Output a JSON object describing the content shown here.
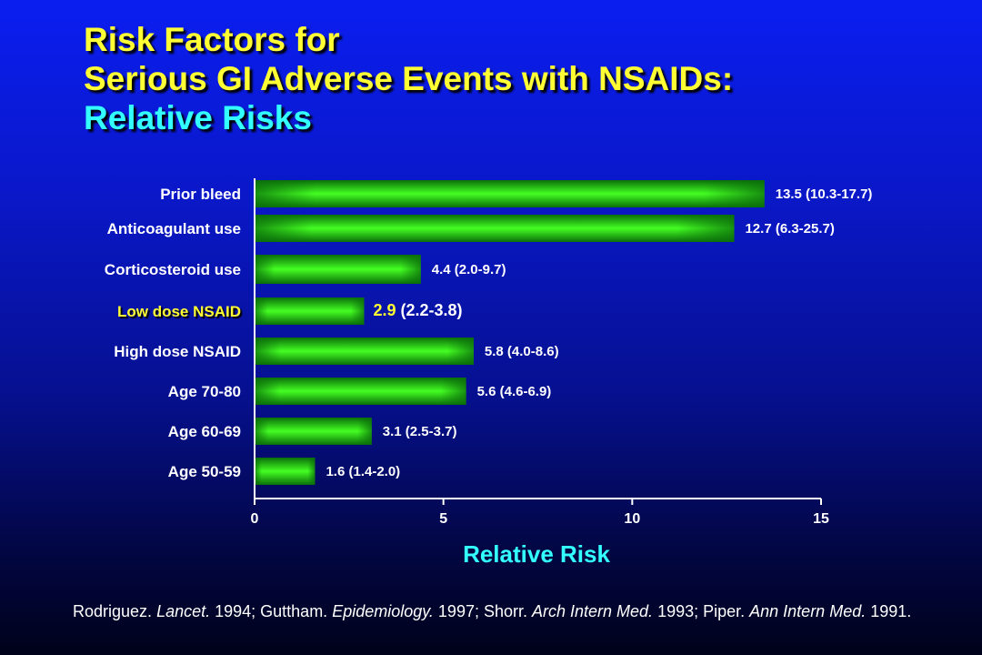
{
  "title": {
    "line1": "Risk Factors for",
    "line2": "Serious GI Adverse Events with NSAIDs:",
    "line3": "Relative Risks"
  },
  "colors": {
    "bar_edge": "#0a6e0a",
    "bar_center": "#44ff22",
    "label": "#ffffff",
    "highlight": "#ffff33",
    "axis_title": "#33ffff"
  },
  "chart_data": {
    "type": "bar",
    "orientation": "horizontal",
    "categories": [
      "Prior bleed",
      "Anticoagulant use",
      "Corticosteroid use",
      "Low dose NSAID",
      "High dose NSAID",
      "Age 70-80",
      "Age 60-69",
      "Age 50-59"
    ],
    "values": [
      13.5,
      12.7,
      4.4,
      2.9,
      5.8,
      5.6,
      3.1,
      1.6
    ],
    "data_labels": [
      {
        "value": "13.5",
        "ci": "(10.3-17.7)"
      },
      {
        "value": "12.7",
        "ci": "(6.3-25.7)"
      },
      {
        "value": "4.4",
        "ci": "(2.0-9.7)"
      },
      {
        "value": "2.9",
        "ci": "(2.2-3.8)"
      },
      {
        "value": "5.8",
        "ci": "(4.0-8.6)"
      },
      {
        "value": "5.6",
        "ci": "(4.6-6.9)"
      },
      {
        "value": "3.1",
        "ci": "(2.5-3.7)"
      },
      {
        "value": "1.6",
        "ci": "(1.4-2.0)"
      }
    ],
    "highlighted_category": "Low dose NSAID",
    "xlabel": "Relative Risk",
    "xlim": [
      0,
      15
    ],
    "xticks": [
      "0",
      "5",
      "10",
      "15"
    ],
    "grid": false
  },
  "footnote": {
    "parts": [
      {
        "text": "Rodriguez. ",
        "italic": false
      },
      {
        "text": "Lancet.",
        "italic": true
      },
      {
        "text": " 1994; Guttham. ",
        "italic": false
      },
      {
        "text": "Epidemiology.",
        "italic": true
      },
      {
        "text": " 1997; Shorr. ",
        "italic": false
      },
      {
        "text": "Arch Intern Med.",
        "italic": true
      },
      {
        "text": " 1993; Piper. ",
        "italic": false
      },
      {
        "text": "Ann Intern Med.",
        "italic": true
      },
      {
        "text": " 1991.",
        "italic": false
      }
    ]
  }
}
